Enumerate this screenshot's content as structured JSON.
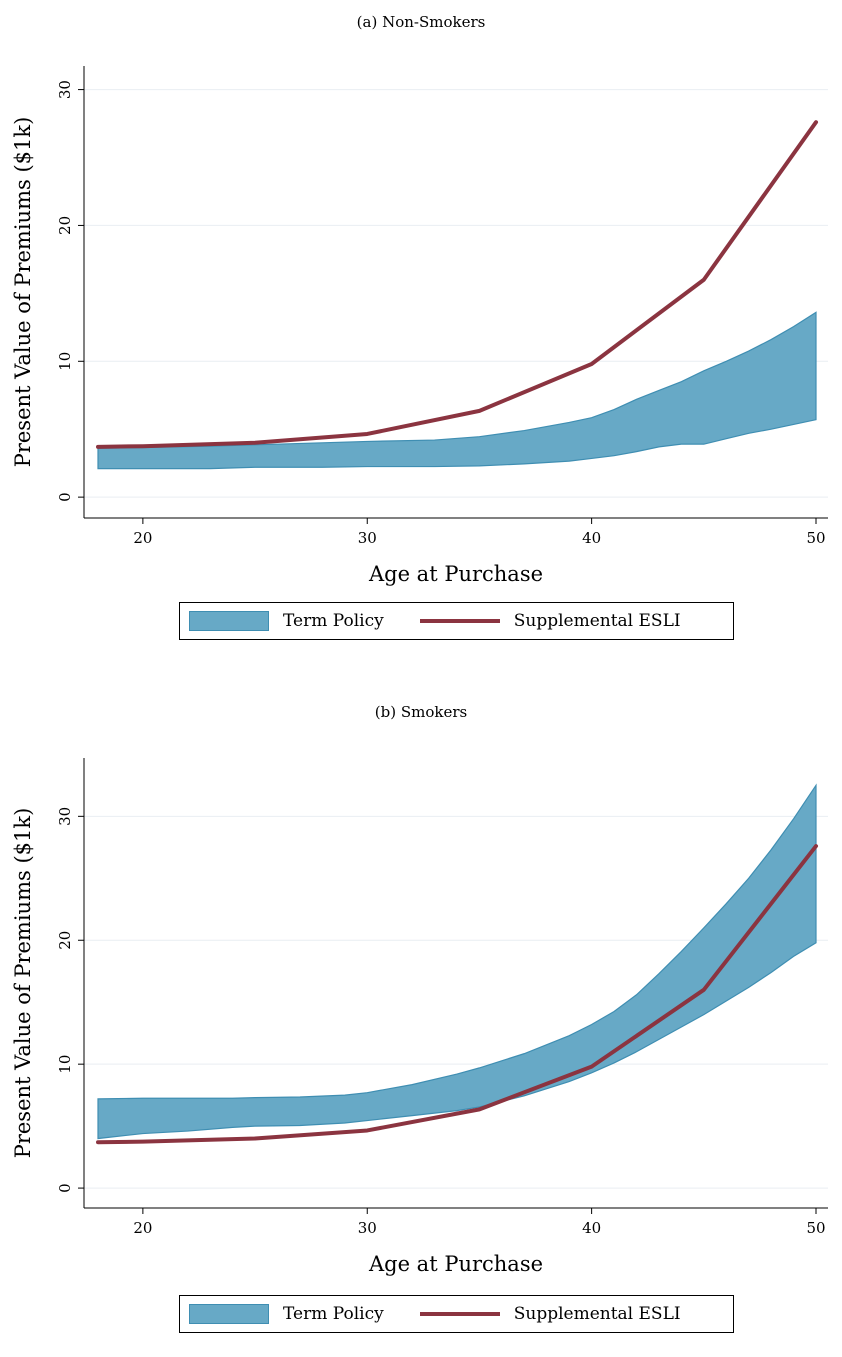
{
  "colors": {
    "term_fill": "#67a9c6",
    "term_stroke": "#3f8eb2",
    "esli_line": "#8b3440",
    "grid": "#e9eef2"
  },
  "chart_data": [
    {
      "type": "area",
      "title": "(a) Non-Smokers",
      "xlabel": "Age at Purchase",
      "ylabel": "Present Value of Premiums ($1k)",
      "xlim": [
        18,
        50
      ],
      "ylim": [
        -0.8,
        31
      ],
      "xticks": [
        20,
        30,
        40,
        50
      ],
      "yticks": [
        0,
        10,
        20,
        30
      ],
      "grid": true,
      "legend_position": "bottom",
      "series": [
        {
          "name": "Term Policy",
          "kind": "band",
          "x": [
            18,
            20,
            23,
            25,
            28,
            30,
            33,
            35,
            37,
            39,
            40,
            41,
            42,
            43,
            44,
            45,
            46,
            47,
            48,
            49,
            50
          ],
          "low": [
            2.1,
            2.1,
            2.1,
            2.2,
            2.2,
            2.25,
            2.25,
            2.3,
            2.45,
            2.65,
            2.85,
            3.05,
            3.35,
            3.7,
            3.9,
            3.9,
            4.3,
            4.7,
            5.0,
            5.35,
            5.7
          ],
          "high": [
            3.6,
            3.65,
            3.75,
            3.85,
            4.0,
            4.1,
            4.2,
            4.45,
            4.9,
            5.5,
            5.85,
            6.45,
            7.2,
            7.85,
            8.5,
            9.3,
            10.0,
            10.75,
            11.6,
            12.55,
            13.6
          ]
        },
        {
          "name": "Supplemental ESLI",
          "kind": "line",
          "x": [
            18,
            20,
            25,
            30,
            35,
            40,
            45,
            50
          ],
          "values": [
            3.7,
            3.75,
            4.0,
            4.65,
            6.35,
            9.8,
            16.0,
            27.6
          ]
        }
      ],
      "legend": [
        "Term Policy",
        "Supplemental ESLI"
      ]
    },
    {
      "type": "area",
      "title": "(b) Smokers",
      "xlabel": "Age at Purchase",
      "ylabel": "Present Value of Premiums ($1k)",
      "xlim": [
        18,
        50
      ],
      "ylim": [
        -0.8,
        33.9
      ],
      "xticks": [
        20,
        30,
        40,
        50
      ],
      "yticks": [
        0,
        10,
        20,
        30
      ],
      "grid": true,
      "legend_position": "bottom",
      "series": [
        {
          "name": "Term Policy",
          "kind": "band",
          "x": [
            18,
            20,
            22,
            24,
            25,
            27,
            29,
            30,
            32,
            34,
            35,
            37,
            39,
            40,
            41,
            42,
            43,
            44,
            45,
            46,
            47,
            48,
            49,
            50
          ],
          "low": [
            4.0,
            4.4,
            4.6,
            4.9,
            5.0,
            5.05,
            5.25,
            5.45,
            5.85,
            6.25,
            6.55,
            7.45,
            8.6,
            9.3,
            10.1,
            11.0,
            12.0,
            13.0,
            14.0,
            15.1,
            16.2,
            17.4,
            18.7,
            19.8
          ],
          "high": [
            7.2,
            7.25,
            7.25,
            7.25,
            7.3,
            7.35,
            7.5,
            7.7,
            8.35,
            9.2,
            9.7,
            10.85,
            12.3,
            13.2,
            14.25,
            15.6,
            17.3,
            19.1,
            21.0,
            22.95,
            25.0,
            27.3,
            29.8,
            32.5
          ]
        },
        {
          "name": "Supplemental ESLI",
          "kind": "line",
          "x": [
            18,
            20,
            25,
            30,
            35,
            40,
            45,
            50
          ],
          "values": [
            3.7,
            3.75,
            4.0,
            4.65,
            6.35,
            9.8,
            16.0,
            27.6
          ]
        }
      ],
      "legend": [
        "Term Policy",
        "Supplemental ESLI"
      ]
    }
  ]
}
